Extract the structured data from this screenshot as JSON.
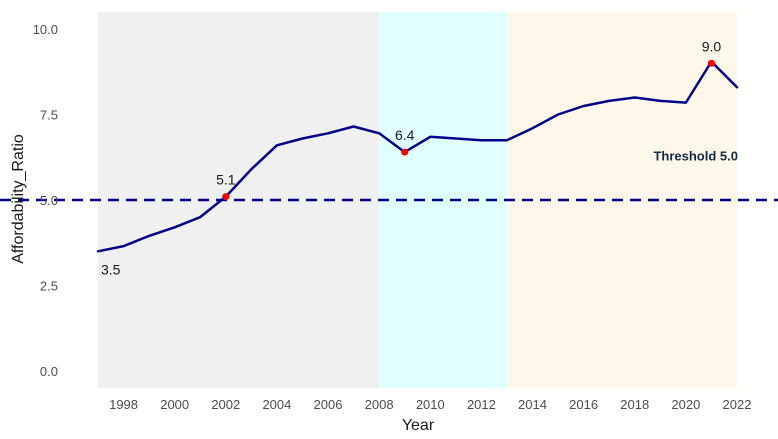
{
  "chart_data": {
    "type": "line",
    "xlabel": "Year",
    "ylabel": "Affordability_Ratio",
    "xlim": [
      1997,
      2022
    ],
    "ylim": [
      -0.5,
      10.5
    ],
    "x_ticks": [
      1998,
      2000,
      2002,
      2004,
      2006,
      2008,
      2010,
      2012,
      2014,
      2016,
      2018,
      2020,
      2022
    ],
    "y_ticks": [
      0.0,
      2.5,
      5.0,
      7.5,
      10.0
    ],
    "y_tick_labels": [
      "0.0",
      "2.5",
      "5.0",
      "7.5",
      "10.0"
    ],
    "grid": false,
    "series": [
      {
        "color": "#00008b",
        "x": [
          1997,
          1998,
          1999,
          2000,
          2001,
          2002,
          2003,
          2004,
          2005,
          2006,
          2007,
          2008,
          2009,
          2010,
          2011,
          2012,
          2013,
          2014,
          2015,
          2016,
          2017,
          2018,
          2019,
          2020,
          2021,
          2022
        ],
        "y": [
          3.5,
          3.65,
          3.95,
          4.2,
          4.5,
          5.1,
          5.9,
          6.6,
          6.8,
          6.95,
          7.15,
          6.95,
          6.4,
          6.85,
          6.8,
          6.75,
          6.75,
          7.1,
          7.5,
          7.75,
          7.9,
          8.0,
          7.9,
          7.85,
          9.05,
          8.3
        ]
      }
    ],
    "highlight_points": [
      {
        "x": 2002,
        "y": 5.1,
        "label": "5.1"
      },
      {
        "x": 2009,
        "y": 6.4,
        "label": "6.4"
      },
      {
        "x": 2021,
        "y": 9.0,
        "label": "9.0"
      }
    ],
    "point_annotations": [
      {
        "x": 1997,
        "y": 3.5,
        "label": "3.5"
      }
    ],
    "threshold": {
      "value": 5.0,
      "label": "Threshold 5.0",
      "color": "#00008b",
      "style": "dashed"
    },
    "shaded_regions": [
      {
        "x_start": 1997,
        "x_end": 2008,
        "color": "#f0f0f0"
      },
      {
        "x_start": 2008,
        "x_end": 2013,
        "color": "#e0ffff"
      },
      {
        "x_start": 2013,
        "x_end": 2022,
        "color": "#fff8ea"
      }
    ],
    "colors": {
      "line": "#00008b",
      "highlight": "#ff0000",
      "threshold_label": "#102a43"
    }
  }
}
